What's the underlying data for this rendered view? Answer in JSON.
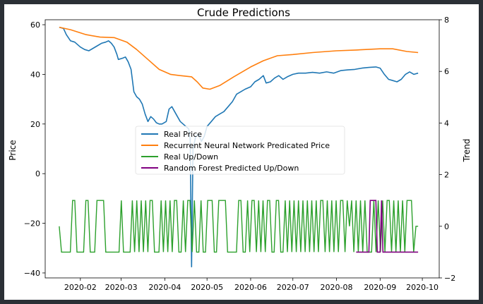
{
  "chart_data": {
    "type": "line",
    "title": "Crude Predictions",
    "ylabel_left": "Price",
    "ylabel_right": "Trend",
    "xlabel": "",
    "ylim_left": [
      -42,
      62
    ],
    "ylim_right": [
      -2,
      8
    ],
    "yticks_left": [
      -40,
      -20,
      0,
      20,
      40,
      60
    ],
    "yticks_right": [
      -2,
      0,
      2,
      4,
      6,
      8
    ],
    "x_range": [
      "2020-01-07",
      "2020-10-13"
    ],
    "x_ticks": [
      "2020-02",
      "2020-03",
      "2020-04",
      "2020-05",
      "2020-06",
      "2020-07",
      "2020-08",
      "2020-09",
      "2020-10"
    ],
    "legend_position": "center-left",
    "grid": false,
    "colors": {
      "real_price": "#1f77b4",
      "rnn_price": "#ff7f0e",
      "real_updown": "#2ca02c",
      "rf_updown": "#800080"
    },
    "series": [
      {
        "name": "Real Price",
        "axis": "left",
        "points": [
          [
            "2020-01-17",
            59
          ],
          [
            "2020-01-20",
            58.5
          ],
          [
            "2020-01-22",
            56
          ],
          [
            "2020-01-25",
            53.5
          ],
          [
            "2020-01-28",
            53
          ],
          [
            "2020-02-01",
            51
          ],
          [
            "2020-02-04",
            50
          ],
          [
            "2020-02-07",
            49.5
          ],
          [
            "2020-02-10",
            50.5
          ],
          [
            "2020-02-13",
            51.5
          ],
          [
            "2020-02-16",
            52.5
          ],
          [
            "2020-02-19",
            53
          ],
          [
            "2020-02-21",
            53.5
          ],
          [
            "2020-02-23",
            52.5
          ],
          [
            "2020-02-25",
            51
          ],
          [
            "2020-02-27",
            48
          ],
          [
            "2020-02-28",
            46
          ],
          [
            "2020-03-02",
            46.5
          ],
          [
            "2020-03-04",
            47
          ],
          [
            "2020-03-06",
            45
          ],
          [
            "2020-03-08",
            42
          ],
          [
            "2020-03-10",
            33
          ],
          [
            "2020-03-12",
            31
          ],
          [
            "2020-03-14",
            30
          ],
          [
            "2020-03-16",
            28
          ],
          [
            "2020-03-18",
            24
          ],
          [
            "2020-03-20",
            21
          ],
          [
            "2020-03-22",
            23
          ],
          [
            "2020-03-24",
            22
          ],
          [
            "2020-03-26",
            20.5
          ],
          [
            "2020-03-28",
            20
          ],
          [
            "2020-03-30",
            20
          ],
          [
            "2020-04-02",
            21
          ],
          [
            "2020-04-04",
            26
          ],
          [
            "2020-04-06",
            27
          ],
          [
            "2020-04-08",
            25
          ],
          [
            "2020-04-10",
            23
          ],
          [
            "2020-04-12",
            21
          ],
          [
            "2020-04-14",
            20
          ],
          [
            "2020-04-16",
            19
          ],
          [
            "2020-04-18",
            18
          ],
          [
            "2020-04-19",
            14
          ],
          [
            "2020-04-20",
            -37.5
          ],
          [
            "2020-04-21",
            10
          ],
          [
            "2020-04-23",
            15
          ],
          [
            "2020-04-25",
            16
          ],
          [
            "2020-04-27",
            13
          ],
          [
            "2020-04-29",
            15
          ],
          [
            "2020-05-01",
            19
          ],
          [
            "2020-05-04",
            21
          ],
          [
            "2020-05-07",
            23
          ],
          [
            "2020-05-10",
            24
          ],
          [
            "2020-05-13",
            25
          ],
          [
            "2020-05-16",
            27
          ],
          [
            "2020-05-19",
            29
          ],
          [
            "2020-05-22",
            32
          ],
          [
            "2020-05-25",
            33
          ],
          [
            "2020-05-28",
            34
          ],
          [
            "2020-06-01",
            35
          ],
          [
            "2020-06-04",
            37
          ],
          [
            "2020-06-07",
            38
          ],
          [
            "2020-06-10",
            39.5
          ],
          [
            "2020-06-12",
            36.5
          ],
          [
            "2020-06-15",
            37
          ],
          [
            "2020-06-18",
            38.5
          ],
          [
            "2020-06-21",
            39.5
          ],
          [
            "2020-06-24",
            38
          ],
          [
            "2020-06-27",
            39
          ],
          [
            "2020-07-01",
            40
          ],
          [
            "2020-07-05",
            40.5
          ],
          [
            "2020-07-10",
            40.5
          ],
          [
            "2020-07-15",
            40.8
          ],
          [
            "2020-07-20",
            40.5
          ],
          [
            "2020-07-25",
            41
          ],
          [
            "2020-07-30",
            40.5
          ],
          [
            "2020-08-04",
            41.5
          ],
          [
            "2020-08-09",
            41.8
          ],
          [
            "2020-08-14",
            42
          ],
          [
            "2020-08-19",
            42.5
          ],
          [
            "2020-08-24",
            42.8
          ],
          [
            "2020-08-29",
            43
          ],
          [
            "2020-09-01",
            42.5
          ],
          [
            "2020-09-04",
            40
          ],
          [
            "2020-09-07",
            38
          ],
          [
            "2020-09-10",
            37.5
          ],
          [
            "2020-09-13",
            37
          ],
          [
            "2020-09-16",
            38
          ],
          [
            "2020-09-19",
            40
          ],
          [
            "2020-09-22",
            41
          ],
          [
            "2020-09-25",
            40
          ],
          [
            "2020-09-28",
            40.5
          ]
        ]
      },
      {
        "name": "Recurrent Neural Network Predicated Price",
        "axis": "left",
        "points": [
          [
            "2020-01-17",
            59
          ],
          [
            "2020-01-25",
            58
          ],
          [
            "2020-02-05",
            56
          ],
          [
            "2020-02-15",
            55
          ],
          [
            "2020-02-25",
            54.8
          ],
          [
            "2020-03-05",
            53
          ],
          [
            "2020-03-12",
            50
          ],
          [
            "2020-03-20",
            46
          ],
          [
            "2020-03-28",
            42
          ],
          [
            "2020-04-05",
            40
          ],
          [
            "2020-04-12",
            39.5
          ],
          [
            "2020-04-20",
            39
          ],
          [
            "2020-04-24",
            37
          ],
          [
            "2020-04-28",
            34.5
          ],
          [
            "2020-05-03",
            34
          ],
          [
            "2020-05-10",
            35.5
          ],
          [
            "2020-05-20",
            39
          ],
          [
            "2020-06-01",
            43
          ],
          [
            "2020-06-10",
            45.5
          ],
          [
            "2020-06-20",
            47.5
          ],
          [
            "2020-07-01",
            48
          ],
          [
            "2020-07-15",
            48.8
          ],
          [
            "2020-08-01",
            49.5
          ],
          [
            "2020-08-15",
            49.8
          ],
          [
            "2020-09-01",
            50.3
          ],
          [
            "2020-09-10",
            50.3
          ],
          [
            "2020-09-20",
            49.2
          ],
          [
            "2020-09-28",
            48.8
          ]
        ]
      },
      {
        "name": "Real Up/Down",
        "axis": "right",
        "states": [
          0,
          -1,
          -1,
          -1,
          -1,
          -1,
          1,
          1,
          -1,
          -1,
          -1,
          -1,
          1,
          1,
          -1,
          -1,
          -1,
          1,
          1,
          1,
          1,
          -1,
          -1,
          -1,
          -1,
          -1,
          -1,
          -1,
          1,
          -1,
          -1,
          -1,
          -1,
          1,
          -1,
          1,
          -1,
          1,
          -1,
          1,
          -1,
          1,
          1,
          -1,
          -1,
          -1,
          1,
          -1,
          1,
          -1,
          1,
          -1,
          1,
          1,
          -1,
          -1,
          1,
          -1,
          1,
          1,
          -1,
          1,
          -1,
          -1,
          1,
          -1,
          -1,
          1,
          1,
          1,
          -1,
          -1,
          1,
          1,
          1,
          1,
          -1,
          -1,
          -1,
          -1,
          -1,
          1,
          1,
          -1,
          -1,
          1,
          -1,
          1,
          1,
          -1,
          1,
          -1,
          1,
          -1,
          1,
          1,
          -1,
          -1,
          1,
          1,
          -1,
          -1,
          1,
          -1,
          1,
          -1,
          1,
          -1,
          1,
          -1,
          1,
          -1,
          1,
          -1,
          1,
          -1,
          1,
          -1,
          1,
          1,
          -1,
          1,
          -1,
          1,
          -1,
          1,
          -1,
          1,
          1,
          -1,
          1,
          0,
          1,
          -1,
          1,
          -1,
          1,
          -1,
          1,
          -1,
          -1,
          -1,
          1,
          -1,
          1,
          -1,
          1,
          -1,
          1,
          1,
          -1,
          1,
          -1,
          1,
          -1,
          1,
          -1,
          1,
          1,
          1,
          -1,
          0,
          0
        ]
      },
      {
        "name": "Random Forest Predicted Up/Down",
        "axis": "right",
        "points": [
          [
            "2020-08-15",
            -1
          ],
          [
            "2020-08-24",
            -1
          ],
          [
            "2020-08-25",
            1
          ],
          [
            "2020-08-29",
            1
          ],
          [
            "2020-08-30",
            -1
          ],
          [
            "2020-09-01",
            -1
          ],
          [
            "2020-09-02",
            1
          ],
          [
            "2020-09-03",
            -1
          ],
          [
            "2020-09-28",
            -1
          ]
        ]
      }
    ]
  }
}
